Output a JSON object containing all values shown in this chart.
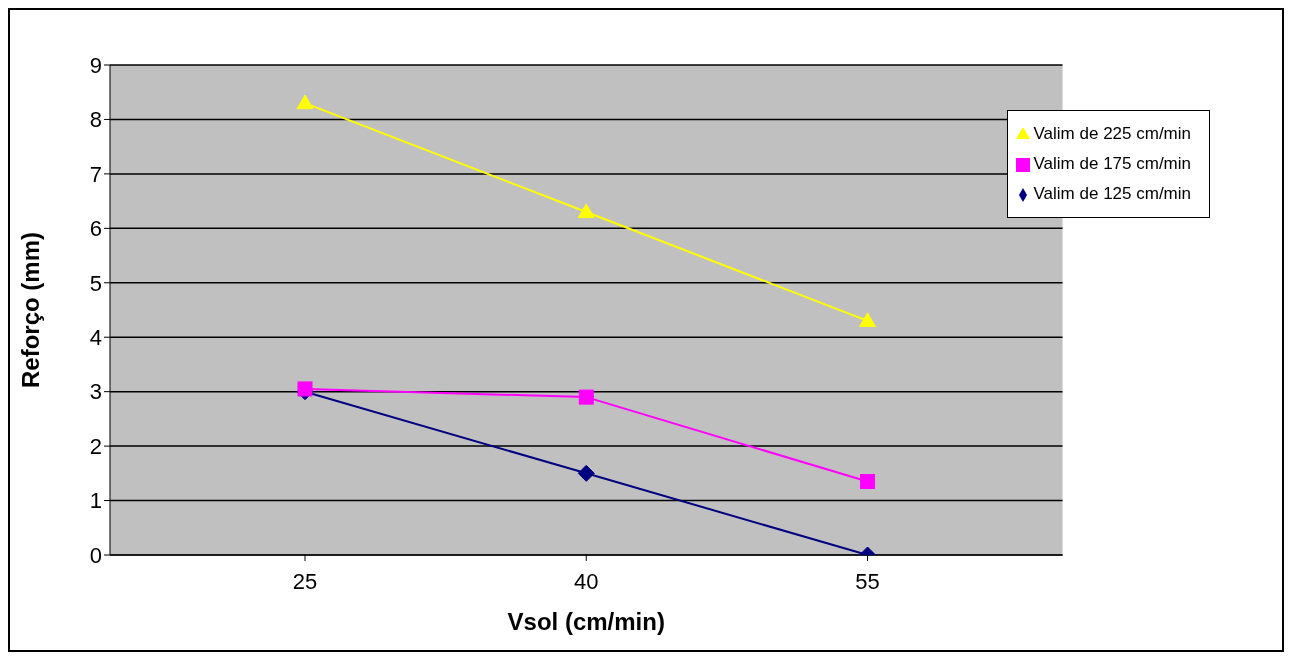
{
  "chart_data": {
    "type": "line",
    "xlabel": "Vsol (cm/min)",
    "ylabel": "Reforço (mm)",
    "categories": [
      "25",
      "40",
      "55"
    ],
    "series": [
      {
        "name": "Valim de 225 cm/min",
        "color": "#ffff00",
        "marker": "triangle",
        "values": [
          8.3,
          6.3,
          4.3
        ]
      },
      {
        "name": "Valim de 175 cm/min",
        "color": "#ff00ff",
        "marker": "square",
        "values": [
          3.05,
          2.9,
          1.35
        ]
      },
      {
        "name": "Valim de 125 cm/min",
        "color": "#000080",
        "marker": "diamond",
        "values": [
          3.0,
          1.5,
          0.0
        ]
      }
    ],
    "ylim": [
      0,
      9
    ],
    "yticks": [
      0,
      1,
      2,
      3,
      4,
      5,
      6,
      7,
      8,
      9
    ],
    "grid": "y",
    "legend": "top right"
  }
}
